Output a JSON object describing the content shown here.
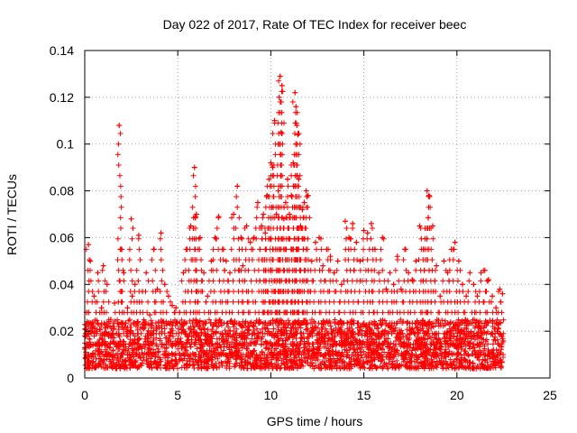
{
  "chart_data": {
    "type": "scatter",
    "title": "Day 022 of 2017, Rate Of TEC Index for receiver beec",
    "xlabel": "GPS time / hours",
    "ylabel": "ROTI / TECUs",
    "xlim": [
      0,
      25
    ],
    "ylim": [
      0,
      0.14
    ],
    "x_ticks": [
      "0",
      "5",
      "10",
      "15",
      "20",
      "25"
    ],
    "y_ticks": [
      "0",
      "0.02",
      "0.04",
      "0.06",
      "0.08",
      "0.1",
      "0.12",
      "0.14"
    ],
    "grid": true,
    "marker": "+",
    "color": "#ff0000",
    "background_band": {
      "x_range": [
        0,
        22.5
      ],
      "y_range": [
        0.004,
        0.025
      ]
    },
    "series": [
      {
        "x": [
          0.05,
          0.1,
          0.2,
          0.3,
          0.5,
          0.7,
          0.9,
          1.0,
          1.2,
          1.4,
          1.6,
          1.85,
          1.95,
          2.1,
          2.3,
          2.5,
          2.55,
          2.7,
          2.9,
          3.1,
          3.3,
          3.5,
          3.7,
          3.9,
          4.1,
          4.3,
          4.5,
          4.7,
          4.9,
          5.1,
          5.3,
          5.5,
          5.7,
          5.9,
          5.95,
          6.0,
          6.2,
          6.4,
          6.6,
          6.8,
          7.0,
          7.2,
          7.4,
          7.6,
          7.8,
          8.0,
          8.2,
          8.4,
          8.5,
          8.7,
          8.9,
          9.1,
          9.3,
          9.5,
          9.6,
          9.7,
          9.8,
          9.9,
          10.0,
          10.1,
          10.2,
          10.3,
          10.4,
          10.45,
          10.5,
          10.55,
          10.6,
          10.7,
          10.8,
          10.9,
          11.0,
          11.1,
          11.2,
          11.3,
          11.35,
          11.4,
          11.45,
          11.5,
          11.6,
          11.7,
          11.8,
          11.9,
          12.0,
          12.2,
          12.4,
          12.6,
          12.8,
          13.0,
          13.2,
          13.4,
          13.6,
          13.8,
          14.0,
          14.2,
          14.4,
          14.6,
          14.8,
          15.0,
          15.2,
          15.4,
          15.6,
          15.8,
          16.0,
          16.2,
          16.4,
          16.6,
          16.8,
          17.0,
          17.2,
          17.4,
          17.6,
          17.8,
          18.0,
          18.2,
          18.3,
          18.4,
          18.5,
          18.7,
          18.9,
          19.1,
          19.3,
          19.5,
          19.7,
          19.9,
          20.1,
          20.3,
          20.5,
          20.7,
          20.9,
          21.1,
          21.3,
          21.5,
          21.7,
          21.9,
          22.1,
          22.3,
          22.45
        ],
        "y": [
          0.021,
          0.028,
          0.057,
          0.05,
          0.035,
          0.045,
          0.03,
          0.048,
          0.04,
          0.025,
          0.032,
          0.108,
          0.055,
          0.045,
          0.03,
          0.068,
          0.035,
          0.04,
          0.061,
          0.037,
          0.045,
          0.027,
          0.055,
          0.038,
          0.062,
          0.04,
          0.035,
          0.031,
          0.03,
          0.028,
          0.045,
          0.055,
          0.065,
          0.09,
          0.069,
          0.07,
          0.06,
          0.045,
          0.035,
          0.05,
          0.06,
          0.069,
          0.055,
          0.05,
          0.045,
          0.07,
          0.082,
          0.06,
          0.048,
          0.065,
          0.058,
          0.06,
          0.075,
          0.065,
          0.07,
          0.062,
          0.078,
          0.085,
          0.092,
          0.09,
          0.11,
          0.07,
          0.08,
          0.12,
          0.129,
          0.105,
          0.125,
          0.068,
          0.075,
          0.085,
          0.07,
          0.078,
          0.092,
          0.122,
          0.116,
          0.108,
          0.104,
          0.085,
          0.065,
          0.072,
          0.075,
          0.08,
          0.078,
          0.05,
          0.058,
          0.06,
          0.048,
          0.055,
          0.052,
          0.045,
          0.05,
          0.04,
          0.067,
          0.06,
          0.066,
          0.058,
          0.05,
          0.063,
          0.062,
          0.066,
          0.055,
          0.045,
          0.06,
          0.038,
          0.045,
          0.04,
          0.052,
          0.038,
          0.055,
          0.045,
          0.042,
          0.05,
          0.065,
          0.055,
          0.064,
          0.08,
          0.078,
          0.065,
          0.048,
          0.035,
          0.05,
          0.045,
          0.055,
          0.058,
          0.05,
          0.04,
          0.035,
          0.045,
          0.04,
          0.035,
          0.045,
          0.046,
          0.042,
          0.035,
          0.03,
          0.038,
          0.036
        ]
      }
    ]
  }
}
